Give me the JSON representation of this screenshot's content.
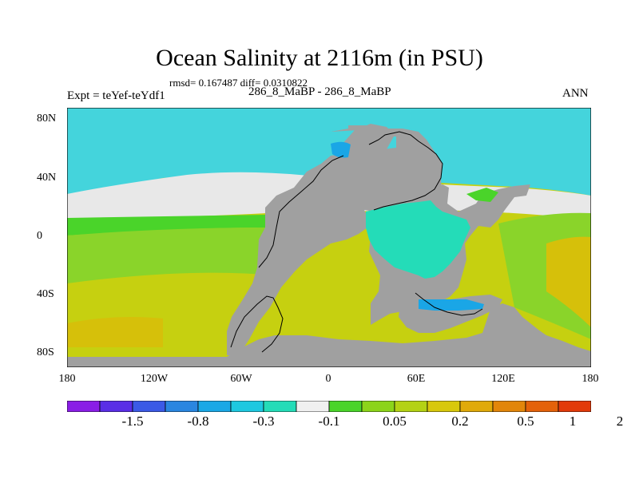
{
  "title": "Ocean Salinity at 2116m (in PSU)",
  "stats": "rmsd= 0.167487 diff= 0.0310822",
  "expt": "Expt = teYef-teYdf1",
  "center_label": "286_8_MaBP - 286_8_MaBP",
  "season": "ANN",
  "y_ticks": [
    "80N",
    "40N",
    "0",
    "40S",
    "80S"
  ],
  "x_ticks": [
    "180",
    "120W",
    "60W",
    "0",
    "60E",
    "120E",
    "180"
  ],
  "colorbar": {
    "labels": [
      "-1.5",
      "-0.8",
      "-0.3",
      "-0.1",
      "0.05",
      "0.2",
      "0.5",
      "1",
      "2"
    ],
    "colors": [
      "#8a1ee6",
      "#5a2ee6",
      "#3b5ae6",
      "#2a86e0",
      "#1aa8e6",
      "#1ec8e0",
      "#24dcb8",
      "#f0f0f0",
      "#4ad42a",
      "#8cd41a",
      "#b4d214",
      "#d8c80c",
      "#e0aa0a",
      "#e2860a",
      "#e4620a",
      "#e23a0a"
    ]
  },
  "land_color": "#a0a0a0",
  "colors": {
    "arctic": "#44d4dc",
    "neutral": "#e8e8e8",
    "green": "#8ad42a",
    "yellowgreen": "#c6d010",
    "olive": "#d6c00a",
    "bluespot": "#1aa6e6",
    "teal": "#2adcb6"
  }
}
